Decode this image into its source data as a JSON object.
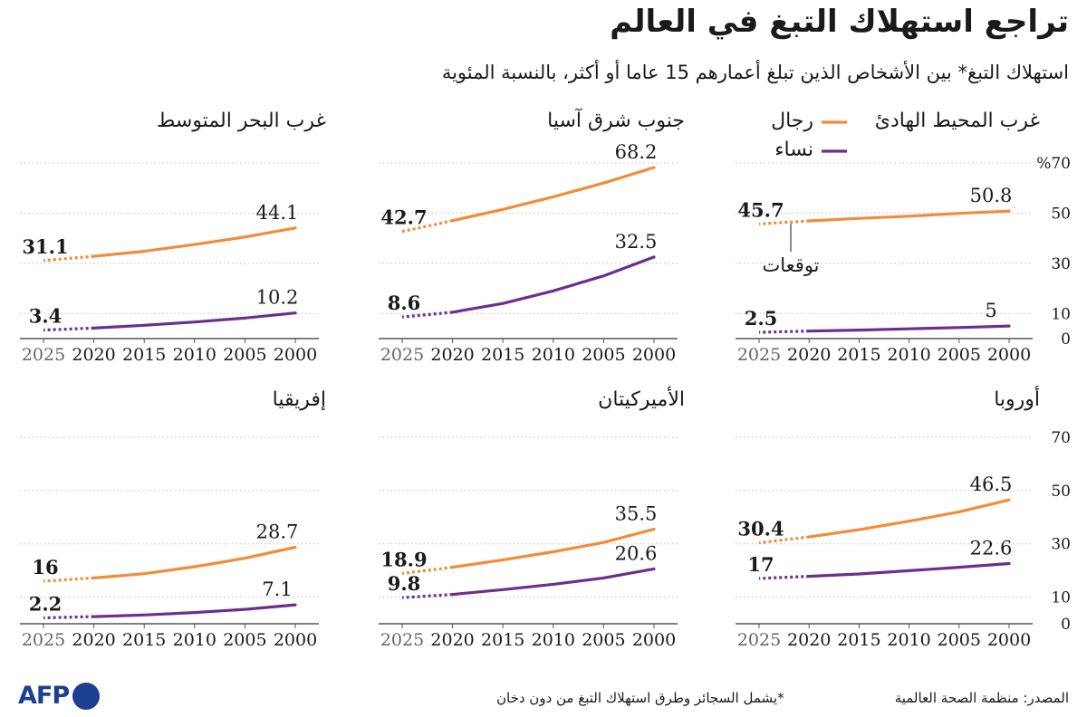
{
  "header": {
    "title": "تراجع استهلاك التبغ في العالم",
    "subtitle": "استهلاك التبغ* بين الأشخاص الذين تبلغ أعمارهم 15 عاما أو أكثر، بالنسبة المئوية"
  },
  "legend": {
    "men": "رجال",
    "women": "نساء",
    "projection": "توقعات"
  },
  "colors": {
    "men": "#f28c38",
    "women": "#6b2f8f",
    "grid": "#bdbdbd",
    "axis": "#555555"
  },
  "chart_data": [
    {
      "type": "line",
      "title": "غرب المحيط الهادئ",
      "x": [
        2000,
        2005,
        2010,
        2015,
        2020,
        2025
      ],
      "series": [
        {
          "name": "رجال",
          "values": [
            50.8,
            49.9,
            48.8,
            47.9,
            46.9,
            45.7
          ],
          "label_end": "50.8",
          "label_start": "45.7"
        },
        {
          "name": "نساء",
          "values": [
            5.0,
            4.4,
            3.9,
            3.4,
            3.0,
            2.5
          ],
          "label_end": "5",
          "label_start": "2.5"
        }
      ],
      "ylim": [
        0,
        70
      ],
      "ytick_labels": [
        "%70",
        "50",
        "30",
        "10",
        "0"
      ],
      "projection_from": 2020,
      "x_tick_labels": [
        "2000",
        "2005",
        "2010",
        "2015",
        "2020",
        "2025"
      ]
    },
    {
      "type": "line",
      "title": "جنوب شرق آسيا",
      "x": [
        2000,
        2005,
        2010,
        2015,
        2020,
        2025
      ],
      "series": [
        {
          "name": "رجال",
          "values": [
            68.2,
            62.0,
            56.5,
            51.5,
            47.0,
            42.7
          ],
          "label_end": "68.2",
          "label_start": "42.7"
        },
        {
          "name": "نساء",
          "values": [
            32.5,
            25.0,
            19.0,
            14.0,
            10.5,
            8.6
          ],
          "label_end": "32.5",
          "label_start": "8.6"
        }
      ],
      "ylim": [
        0,
        70
      ],
      "projection_from": 2020,
      "x_tick_labels": [
        "2000",
        "2005",
        "2010",
        "2015",
        "2020",
        "2025"
      ]
    },
    {
      "type": "line",
      "title": "غرب البحر المتوسط",
      "x": [
        2000,
        2005,
        2010,
        2015,
        2020,
        2025
      ],
      "series": [
        {
          "name": "رجال",
          "values": [
            44.1,
            40.5,
            37.5,
            34.8,
            32.8,
            31.1
          ],
          "label_end": "44.1",
          "label_start": "31.1"
        },
        {
          "name": "نساء",
          "values": [
            10.2,
            8.2,
            6.6,
            5.3,
            4.2,
            3.4
          ],
          "label_end": "10.2",
          "label_start": "3.4"
        }
      ],
      "ylim": [
        0,
        70
      ],
      "projection_from": 2020,
      "x_tick_labels": [
        "2000",
        "2005",
        "2010",
        "2015",
        "2020",
        "2025"
      ]
    },
    {
      "type": "line",
      "title": "أوروبا",
      "x": [
        2000,
        2005,
        2010,
        2015,
        2020,
        2025
      ],
      "series": [
        {
          "name": "رجال",
          "values": [
            46.5,
            42.0,
            38.5,
            35.3,
            32.6,
            30.4
          ],
          "label_end": "46.5",
          "label_start": "30.4"
        },
        {
          "name": "نساء",
          "values": [
            22.6,
            21.2,
            19.9,
            18.7,
            17.8,
            17.0
          ],
          "label_end": "22.6",
          "label_start": "17"
        }
      ],
      "ylim": [
        0,
        70
      ],
      "ytick_labels": [
        "70",
        "50",
        "30",
        "10",
        "0"
      ],
      "projection_from": 2020,
      "x_tick_labels": [
        "2000",
        "2005",
        "2010",
        "2015",
        "2020",
        "2025"
      ]
    },
    {
      "type": "line",
      "title": "الأميركيتان",
      "x": [
        2000,
        2005,
        2010,
        2015,
        2020,
        2025
      ],
      "series": [
        {
          "name": "رجال",
          "values": [
            35.5,
            30.5,
            27.0,
            24.0,
            21.2,
            18.9
          ],
          "label_end": "35.5",
          "label_start": "18.9"
        },
        {
          "name": "نساء",
          "values": [
            20.6,
            17.2,
            14.8,
            12.8,
            11.0,
            9.8
          ],
          "label_end": "20.6",
          "label_start": "9.8"
        }
      ],
      "ylim": [
        0,
        70
      ],
      "projection_from": 2020,
      "x_tick_labels": [
        "2000",
        "2005",
        "2010",
        "2015",
        "2020",
        "2025"
      ]
    },
    {
      "type": "line",
      "title": "إفريقيا",
      "x": [
        2000,
        2005,
        2010,
        2015,
        2020,
        2025
      ],
      "series": [
        {
          "name": "رجال",
          "values": [
            28.7,
            24.6,
            21.4,
            18.8,
            17.2,
            16.0
          ],
          "label_end": "28.7",
          "label_start": "16"
        },
        {
          "name": "نساء",
          "values": [
            7.1,
            5.4,
            4.2,
            3.3,
            2.7,
            2.2
          ],
          "label_end": "7.1",
          "label_start": "2.2"
        }
      ],
      "ylim": [
        0,
        70
      ],
      "projection_from": 2020,
      "x_tick_labels": [
        "2000",
        "2005",
        "2010",
        "2015",
        "2020",
        "2025"
      ]
    }
  ],
  "footer": {
    "source": "المصدر: منظمة الصحة العالمية",
    "footnote": "*يشمل السجائر وطرق استهلاك التبغ من دون دخان",
    "logo_text": "AFP"
  }
}
